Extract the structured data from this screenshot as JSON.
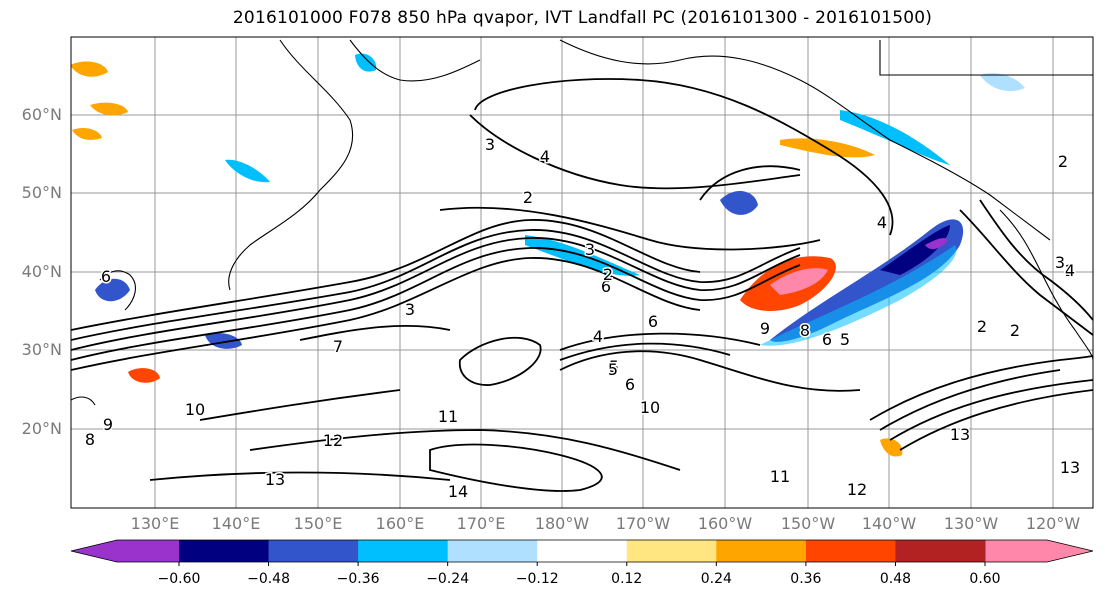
{
  "title": "2016101000 F078 850 hPa qvapor, IVT Landfall PC (2016101300 - 2016101500)",
  "map": {
    "lat_labels": [
      "60°N",
      "50°N",
      "40°N",
      "30°N",
      "20°N"
    ],
    "lon_labels": [
      "130°E",
      "140°E",
      "150°E",
      "160°E",
      "170°E",
      "180°W",
      "170°W",
      "160°W",
      "150°W",
      "140°W",
      "130°W",
      "120°W"
    ],
    "contour_labels": [
      "3",
      "4",
      "2",
      "2",
      "4",
      "2",
      "6",
      "6",
      "4",
      "5",
      "9",
      "8",
      "6",
      "5",
      "2",
      "3",
      "2",
      "4",
      "12",
      "11",
      "10",
      "13",
      "11",
      "12",
      "13",
      "14",
      "13",
      "9",
      "8",
      "2",
      "10",
      "6",
      "7",
      "3",
      "3",
      "5",
      "6"
    ]
  },
  "colorbar": {
    "colors": [
      "#9933cc",
      "#000080",
      "#3355cc",
      "#00bfff",
      "#b0e0ff",
      "#ffffff",
      "#ffe680",
      "#ffa500",
      "#ff4500",
      "#b22222",
      "#ff88aa"
    ],
    "tick_labels": [
      "−0.60",
      "−0.48",
      "−0.36",
      "−0.24",
      "−0.12",
      "0.12",
      "0.24",
      "0.36",
      "0.48",
      "0.60"
    ]
  }
}
